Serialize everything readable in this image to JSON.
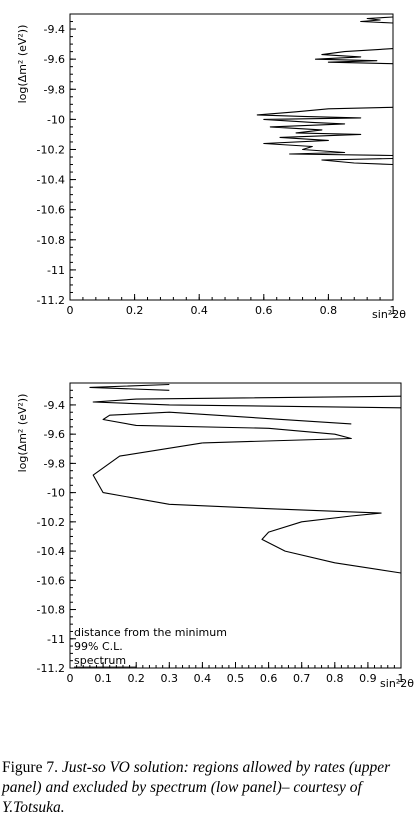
{
  "chart_data": [
    {
      "type": "line",
      "panel": "upper",
      "ylabel": "log(Δm² (eV²))",
      "xlabel": "sin²2θ",
      "xlim": [
        0,
        1
      ],
      "ylim": [
        -11.2,
        -9.3
      ],
      "x_ticks": [
        "0",
        "0.2",
        "0.4",
        "0.6",
        "0.8",
        "1"
      ],
      "y_ticks": [
        "-9.4",
        "-9.6",
        "-9.8",
        "-10",
        "-10.2",
        "-10.4",
        "-10.6",
        "-10.8",
        "-11",
        "-11.2"
      ],
      "contours": [
        [
          [
            1.0,
            -9.32
          ],
          [
            0.92,
            -9.33
          ],
          [
            0.96,
            -9.34
          ],
          [
            0.9,
            -9.35
          ],
          [
            1.0,
            -9.36
          ]
        ],
        [
          [
            1.0,
            -9.53
          ],
          [
            0.85,
            -9.55
          ],
          [
            0.78,
            -9.57
          ],
          [
            0.9,
            -9.585
          ],
          [
            0.76,
            -9.6
          ],
          [
            0.95,
            -9.61
          ],
          [
            0.8,
            -9.62
          ],
          [
            1.0,
            -9.63
          ]
        ],
        [
          [
            1.0,
            -9.92
          ],
          [
            0.8,
            -9.93
          ],
          [
            0.7,
            -9.95
          ],
          [
            0.58,
            -9.97
          ],
          [
            0.72,
            -9.98
          ],
          [
            0.9,
            -9.99
          ],
          [
            0.6,
            -10.0
          ],
          [
            0.75,
            -10.02
          ],
          [
            0.85,
            -10.03
          ],
          [
            0.62,
            -10.05
          ],
          [
            0.78,
            -10.07
          ],
          [
            0.7,
            -10.09
          ],
          [
            0.9,
            -10.1
          ],
          [
            0.65,
            -10.12
          ],
          [
            0.8,
            -10.14
          ],
          [
            0.6,
            -10.16
          ],
          [
            0.75,
            -10.18
          ],
          [
            0.72,
            -10.2
          ],
          [
            0.85,
            -10.22
          ],
          [
            0.68,
            -10.23
          ],
          [
            1.0,
            -10.24
          ]
        ],
        [
          [
            1.0,
            -10.26
          ],
          [
            0.78,
            -10.27
          ],
          [
            0.88,
            -10.29
          ],
          [
            1.0,
            -10.3
          ]
        ]
      ]
    },
    {
      "type": "line",
      "panel": "lower",
      "ylabel": "log(Δm² (eV²))",
      "xlabel": "sin²2θ",
      "xlim": [
        0,
        1
      ],
      "ylim": [
        -11.2,
        -9.25
      ],
      "x_ticks": [
        "0",
        "0.1",
        "0.2",
        "0.3",
        "0.4",
        "0.5",
        "0.6",
        "0.7",
        "0.8",
        "0.9",
        "1"
      ],
      "y_ticks": [
        "-9.4",
        "-9.6",
        "-9.8",
        "-10",
        "-10.2",
        "-10.4",
        "-10.6",
        "-10.8",
        "-11",
        "-11.2"
      ],
      "annotations": [
        "distance from the minimum",
        "99% C.L.",
        "spectrum"
      ],
      "contours": [
        [
          [
            0.3,
            -9.26
          ],
          [
            0.06,
            -9.28
          ],
          [
            0.3,
            -9.3
          ]
        ],
        [
          [
            1.0,
            -9.34
          ],
          [
            0.2,
            -9.36
          ],
          [
            0.07,
            -9.38
          ],
          [
            0.3,
            -9.4
          ],
          [
            1.0,
            -9.42
          ]
        ],
        [
          [
            0.85,
            -9.53
          ],
          [
            0.3,
            -9.45
          ],
          [
            0.12,
            -9.47
          ],
          [
            0.1,
            -9.5
          ],
          [
            0.2,
            -9.54
          ],
          [
            0.6,
            -9.56
          ],
          [
            0.8,
            -9.6
          ],
          [
            0.85,
            -9.63
          ],
          [
            0.4,
            -9.66
          ]
        ],
        [
          [
            0.4,
            -9.66
          ],
          [
            0.15,
            -9.75
          ],
          [
            0.07,
            -9.88
          ],
          [
            0.1,
            -10.0
          ],
          [
            0.3,
            -10.08
          ],
          [
            0.6,
            -10.11
          ],
          [
            0.94,
            -10.14
          ],
          [
            0.85,
            -10.16
          ],
          [
            0.7,
            -10.2
          ],
          [
            0.6,
            -10.27
          ],
          [
            0.58,
            -10.32
          ],
          [
            0.65,
            -10.4
          ],
          [
            0.8,
            -10.48
          ],
          [
            1.0,
            -10.55
          ]
        ]
      ]
    }
  ],
  "caption": {
    "label": "Figure 7.",
    "text": "Just-so VO solution: regions allowed by rates (upper panel) and excluded by spectrum (low panel)– courtesy of Y.Totsuka."
  }
}
